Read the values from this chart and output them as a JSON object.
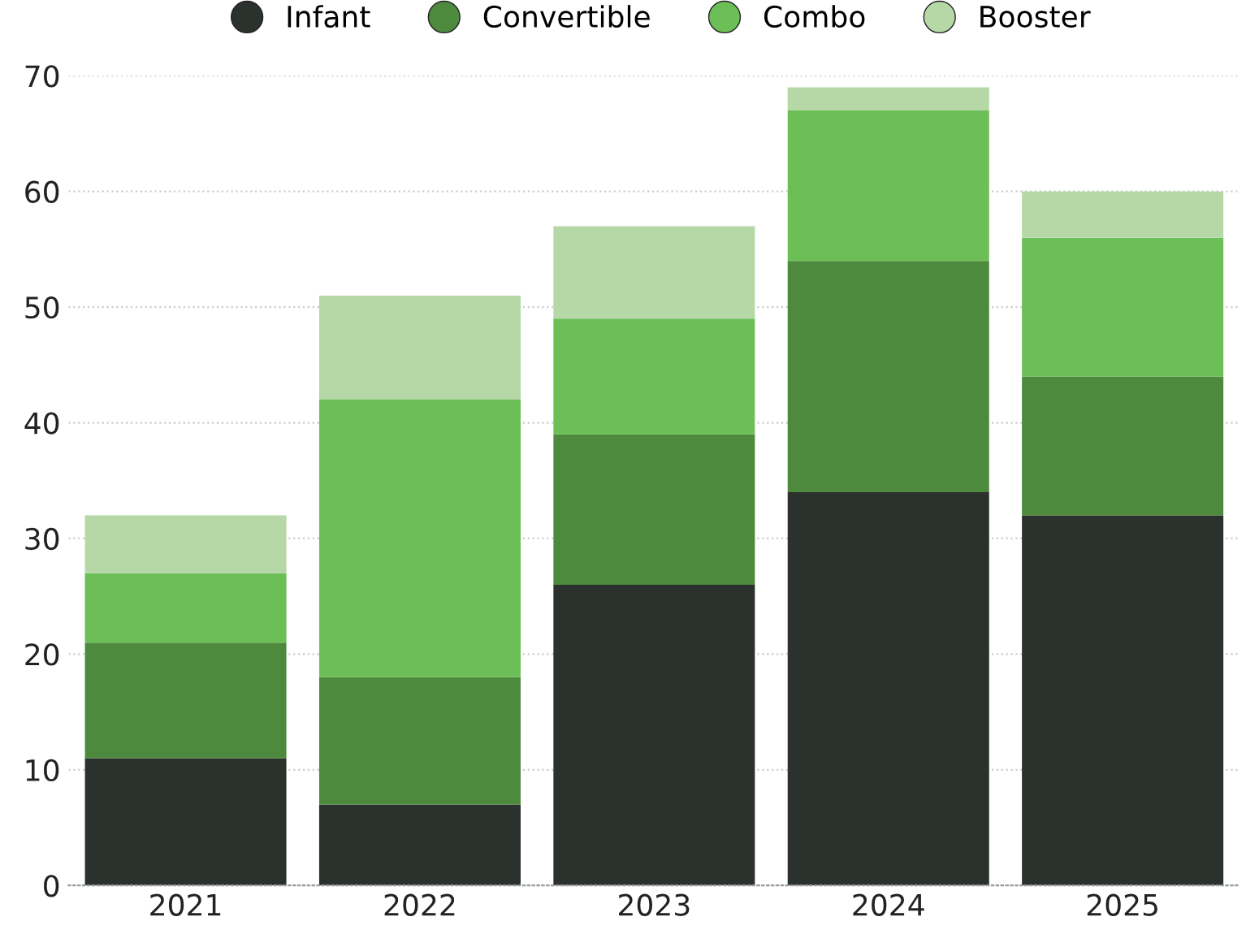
{
  "chart_data": {
    "type": "bar",
    "stacked": true,
    "categories": [
      "2021",
      "2022",
      "2023",
      "2024",
      "2025"
    ],
    "series": [
      {
        "name": "Infant",
        "color": "#2b312c",
        "values": [
          11,
          7,
          26,
          34,
          32
        ]
      },
      {
        "name": "Convertible",
        "color": "#4e8a3e",
        "values": [
          10,
          11,
          13,
          20,
          12
        ]
      },
      {
        "name": "Combo",
        "color": "#6cbf56",
        "values": [
          6,
          24,
          10,
          13,
          12
        ]
      },
      {
        "name": "Booster",
        "color": "#b5d8a6",
        "values": [
          5,
          9,
          8,
          2,
          4
        ]
      }
    ],
    "ylim": [
      0,
      70
    ],
    "yticks": [
      0,
      10,
      20,
      30,
      40,
      50,
      60,
      70
    ],
    "grid": "y",
    "legend": "top"
  }
}
